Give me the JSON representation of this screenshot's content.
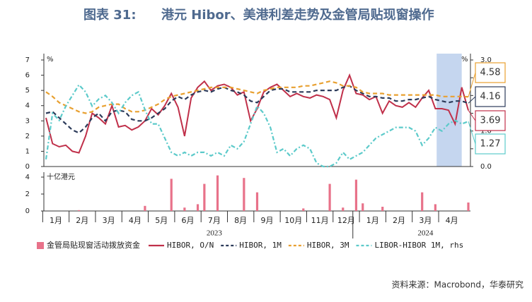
{
  "chart_data": [
    {
      "type": "line",
      "title_label": "图表 31:",
      "title": "港元 Hibor、美港利差走势及金管局贴现窗操作",
      "source": "资料来源：Macrobond，华泰研究",
      "ylabel": "%",
      "y2label": "%",
      "categories": [
        null,
        "1月",
        null,
        null,
        null,
        "2月",
        null,
        null,
        null,
        "3月",
        null,
        null,
        null,
        "4月",
        null,
        null,
        null,
        "5月",
        null,
        null,
        null,
        "6月",
        null,
        null,
        null,
        "7月",
        null,
        null,
        null,
        "8月",
        null,
        null,
        null,
        "9月",
        null,
        null,
        null,
        "10月",
        null,
        null,
        null,
        "11月",
        null,
        null,
        null,
        "12月",
        null,
        null,
        null,
        "1月",
        null,
        null,
        null,
        "2月",
        null,
        null,
        null,
        "3月",
        null,
        null,
        null,
        "4月",
        null,
        null,
        null
      ],
      "x_group_labels": [
        "2023",
        "2024"
      ],
      "ylim": [
        0,
        7
      ],
      "yticks": [
        0,
        1,
        2,
        3,
        4,
        5,
        6,
        7
      ],
      "y2lim": [
        0,
        3
      ],
      "y2ticks": [
        {
          "value": 0,
          "label": "0.0"
        },
        0.5,
        {
          "value": 1,
          "label": "1.0"
        },
        1.5,
        {
          "value": 2,
          "label": "2.0"
        },
        2.5,
        {
          "value": 3,
          "label": "3.0"
        }
      ],
      "series": [
        {
          "name": "HIBOR, O/N",
          "color": "#c0304a",
          "dash": "none",
          "values": [
            3.2,
            1.5,
            1.3,
            1.4,
            1.0,
            0.9,
            2.0,
            3.5,
            3.2,
            2.8,
            4.0,
            2.6,
            2.7,
            2.4,
            2.6,
            3.0,
            3.8,
            3.4,
            4.0,
            4.8,
            3.9,
            2.0,
            4.5,
            5.2,
            5.6,
            5.0,
            5.3,
            5.4,
            5.2,
            4.7,
            4.9,
            3.0,
            3.8,
            4.9,
            5.2,
            5.4,
            5.0,
            4.6,
            4.8,
            4.6,
            4.5,
            4.7,
            4.6,
            4.4,
            3.2,
            5.0,
            6.0,
            4.8,
            4.7,
            4.4,
            4.6,
            3.5,
            4.3,
            4.0,
            3.9,
            4.2,
            3.9,
            4.5,
            5.0,
            3.8,
            3.8,
            3.7,
            2.8,
            5.2,
            3.69
          ]
        },
        {
          "name": "HIBOR, 1M",
          "color": "#2c3b5a",
          "dash": "6 4",
          "values": [
            3.5,
            3.6,
            3.2,
            2.8,
            2.4,
            2.2,
            2.6,
            3.2,
            3.5,
            3.0,
            3.6,
            3.7,
            3.6,
            3.1,
            3.0,
            3.0,
            3.2,
            3.5,
            3.8,
            4.3,
            4.6,
            4.4,
            4.7,
            4.9,
            5.0,
            4.9,
            5.1,
            5.2,
            5.0,
            4.9,
            4.7,
            4.3,
            4.2,
            4.6,
            5.0,
            5.1,
            5.1,
            4.9,
            4.9,
            4.9,
            4.9,
            5.0,
            5.0,
            5.0,
            5.0,
            5.2,
            5.3,
            5.0,
            4.8,
            4.6,
            4.6,
            4.5,
            4.5,
            4.3,
            4.3,
            4.4,
            4.4,
            4.5,
            4.6,
            4.4,
            4.3,
            4.2,
            4.3,
            4.3,
            4.16
          ]
        },
        {
          "name": "HIBOR, 3M",
          "color": "#e8a030",
          "dash": "6 4",
          "values": [
            4.9,
            4.6,
            4.2,
            4.0,
            3.8,
            3.6,
            3.5,
            3.6,
            3.9,
            4.0,
            4.1,
            4.1,
            3.8,
            3.6,
            3.6,
            3.7,
            3.9,
            4.1,
            4.4,
            4.6,
            4.7,
            4.8,
            4.9,
            5.0,
            5.1,
            5.2,
            5.2,
            5.2,
            5.2,
            5.1,
            5.0,
            4.9,
            4.8,
            5.0,
            5.1,
            5.2,
            5.2,
            5.2,
            5.2,
            5.3,
            5.3,
            5.4,
            5.5,
            5.6,
            5.5,
            5.3,
            5.3,
            5.2,
            4.9,
            4.8,
            4.8,
            4.8,
            4.7,
            4.7,
            4.7,
            4.7,
            4.7,
            4.7,
            4.7,
            4.7,
            4.6,
            4.6,
            4.6,
            4.6,
            4.58
          ]
        },
        {
          "name": "LIBOR-HIBOR 1M, rhs",
          "color": "#5ccaca",
          "dash": "6 3 2 3",
          "axis": "y2",
          "values": [
            0.2,
            1.5,
            1.3,
            1.7,
            2.0,
            2.3,
            2.1,
            1.7,
            1.9,
            2.0,
            1.8,
            1.5,
            1.8,
            2.0,
            2.1,
            1.6,
            1.2,
            1.2,
            0.8,
            0.4,
            0.3,
            0.4,
            0.3,
            0.4,
            0.4,
            0.3,
            0.4,
            0.3,
            0.6,
            0.5,
            0.7,
            1.2,
            1.7,
            1.5,
            1.1,
            0.4,
            0.5,
            0.3,
            0.5,
            0.6,
            0.5,
            0.1,
            0.0,
            0.0,
            0.1,
            0.4,
            0.2,
            0.3,
            0.4,
            0.6,
            0.8,
            0.9,
            1.0,
            1.1,
            1.1,
            1.1,
            1.0,
            0.6,
            0.8,
            1.1,
            1.0,
            1.2,
            1.3,
            1.2,
            1.27
          ]
        }
      ]
    },
    {
      "type": "bar",
      "ylabel": "十亿港元",
      "ylim": [
        0,
        4
      ],
      "yticks": [
        0,
        2,
        4
      ],
      "series": [
        {
          "name": "金管局贴现窗活动拨放资金",
          "color": "#e8728a",
          "values": [
            0,
            0,
            0,
            0,
            0,
            0.1,
            0,
            0,
            0,
            0,
            0,
            0,
            0,
            0,
            0,
            0.6,
            0,
            0,
            0,
            3.8,
            0,
            0.4,
            0,
            0.8,
            3.2,
            0,
            4.2,
            0,
            0,
            0,
            3.9,
            0,
            2.2,
            0,
            0,
            0,
            0,
            0,
            0,
            0.3,
            0,
            0,
            0,
            3.2,
            0,
            0.4,
            0,
            3.7,
            0.9,
            0,
            0,
            0.5,
            0,
            0,
            0,
            0,
            0,
            2.2,
            0,
            0.8,
            0,
            0,
            0,
            0,
            1.0
          ]
        }
      ]
    }
  ]
}
